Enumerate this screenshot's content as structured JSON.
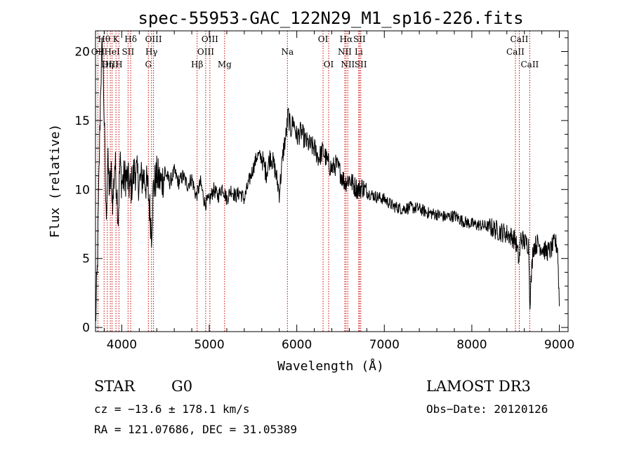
{
  "chart_data": {
    "type": "line",
    "title": "spec-55953-GAC_122N29_M1_sp16-226.fits",
    "xlabel": "Wavelength (Å)",
    "ylabel": "Flux (relative)",
    "xlim": [
      3700,
      9100
    ],
    "ylim": [
      -0.3,
      21.5
    ],
    "xticks": [
      4000,
      5000,
      6000,
      7000,
      8000,
      9000
    ],
    "yticks": [
      0,
      5,
      10,
      15,
      20
    ],
    "grid": false,
    "colors": {
      "spectrum": "#000000",
      "lines": "#cc0000"
    },
    "series": [
      {
        "name": "spectrum",
        "x": [
          3700,
          3720,
          3740,
          3760,
          3780,
          3800,
          3820,
          3840,
          3860,
          3880,
          3900,
          3920,
          3940,
          3960,
          3980,
          4000,
          4050,
          4100,
          4150,
          4200,
          4250,
          4300,
          4340,
          4360,
          4400,
          4450,
          4500,
          4550,
          4600,
          4650,
          4700,
          4750,
          4800,
          4850,
          4900,
          4950,
          5000,
          5050,
          5100,
          5150,
          5200,
          5250,
          5300,
          5350,
          5400,
          5450,
          5500,
          5550,
          5600,
          5650,
          5700,
          5750,
          5800,
          5850,
          5880,
          5900,
          5930,
          5960,
          6000,
          6050,
          6100,
          6150,
          6200,
          6250,
          6300,
          6350,
          6400,
          6450,
          6500,
          6550,
          6600,
          6650,
          6700,
          6750,
          6800,
          6900,
          7000,
          7100,
          7200,
          7300,
          7400,
          7500,
          7600,
          7700,
          7800,
          7900,
          8000,
          8100,
          8200,
          8300,
          8400,
          8450,
          8500,
          8540,
          8560,
          8600,
          8650,
          8662,
          8700,
          8750,
          8800,
          8850,
          8900,
          8950,
          8980,
          9000
        ],
        "y": [
          0.3,
          4,
          11,
          18,
          20.5,
          15,
          8,
          12,
          10,
          11,
          9,
          12,
          10.5,
          8,
          12,
          10.5,
          11,
          10,
          11.5,
          10.5,
          11,
          10,
          7,
          10,
          11,
          10.5,
          11.2,
          10.5,
          11.3,
          10.5,
          11,
          10.3,
          10.8,
          9.5,
          10.5,
          9,
          9.2,
          10,
          9.5,
          10.2,
          9.3,
          10,
          9.5,
          9.8,
          9.3,
          10.5,
          11.5,
          12.5,
          12.3,
          11.2,
          12.5,
          11.5,
          9.8,
          13,
          14,
          15.5,
          14.3,
          15,
          13.8,
          14.2,
          13.5,
          13.2,
          13,
          12.3,
          12.8,
          12,
          11.5,
          11.8,
          11.2,
          10.5,
          10.8,
          10.3,
          10,
          10.2,
          9.8,
          9.5,
          9.3,
          8.8,
          8.6,
          8.7,
          8.6,
          8.3,
          8.2,
          8,
          8.1,
          7.7,
          7.5,
          7.4,
          7.3,
          7,
          6.8,
          6.6,
          6.3,
          4.8,
          6.5,
          6.2,
          6,
          1.8,
          5.8,
          6.1,
          5.8,
          5.5,
          5.6,
          6.2,
          5.8,
          1.8
        ]
      }
    ],
    "spectral_lines": [
      {
        "label": "Hθ",
        "wavelength": 3798,
        "row": 0
      },
      {
        "label": "OII",
        "wavelength": 3727,
        "row": 1
      },
      {
        "label": "HeI",
        "wavelength": 3889,
        "row": 1
      },
      {
        "label": "K",
        "wavelength": 3934,
        "row": 0
      },
      {
        "label": "OIII",
        "wavelength": 3869,
        "row": 2
      },
      {
        "label": "Hη",
        "wavelength": 3835,
        "row": 2
      },
      {
        "label": "SII",
        "wavelength": 4072,
        "row": 1
      },
      {
        "label": "H",
        "wavelength": 3968,
        "row": 2
      },
      {
        "label": "Hδ",
        "wavelength": 4102,
        "row": 0
      },
      {
        "label": "OIII",
        "wavelength": 4363,
        "row": 0
      },
      {
        "label": "Hγ",
        "wavelength": 4340,
        "row": 1
      },
      {
        "label": "G",
        "wavelength": 4304,
        "row": 2
      },
      {
        "label": "Hβ",
        "wavelength": 4861,
        "row": 2
      },
      {
        "label": "OIII",
        "wavelength": 5007,
        "row": 0
      },
      {
        "label": "OIII",
        "wavelength": 4959,
        "row": 1
      },
      {
        "label": "Mg",
        "wavelength": 5175,
        "row": 2
      },
      {
        "label": "Na",
        "wavelength": 5893,
        "row": 1
      },
      {
        "label": "OI",
        "wavelength": 6300,
        "row": 0
      },
      {
        "label": "OI",
        "wavelength": 6364,
        "row": 2
      },
      {
        "label": "Hα",
        "wavelength": 6563,
        "row": 0
      },
      {
        "label": "NII",
        "wavelength": 6548,
        "row": 1
      },
      {
        "label": "NII",
        "wavelength": 6583,
        "row": 2
      },
      {
        "label": "SII",
        "wavelength": 6716,
        "row": 0
      },
      {
        "label": "Li",
        "wavelength": 6708,
        "row": 1
      },
      {
        "label": "SII",
        "wavelength": 6731,
        "row": 2
      },
      {
        "label": "CaII",
        "wavelength": 8542,
        "row": 0
      },
      {
        "label": "CaII",
        "wavelength": 8498,
        "row": 1
      },
      {
        "label": "CaII",
        "wavelength": 8662,
        "row": 2
      }
    ]
  },
  "info": {
    "class": "STAR",
    "subclass": "G0",
    "survey": "LAMOST DR3",
    "cz": "cz = −13.6 ± 178.1 km/s",
    "obs_date": "Obs−Date: 20120126",
    "coords": "RA = 121.07686, DEC =  31.05389"
  }
}
